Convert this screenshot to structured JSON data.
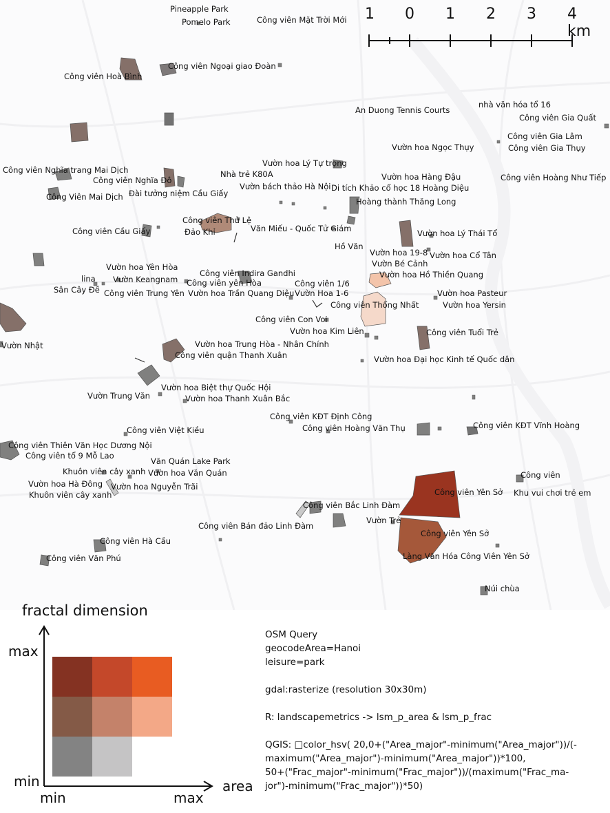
{
  "scale_bar": {
    "ticks": [
      "1",
      "0",
      "1",
      "2",
      "3",
      "4 km"
    ]
  },
  "places": [
    "Pineapple Park",
    "Pomelo Park",
    "Công viên Mặt Trời Mới",
    "Công viên Hoà Bình",
    "Công viên Ngoại giao Đoàn",
    "An Duong Tennis Courts",
    "nhà văn hóa tổ 16",
    "Công viên Gia Quất",
    "Công viên Gia Lâm",
    "Vườn hoa Ngọc Thụy",
    "Công viên Gia Thụy",
    "Vườn hoa Lý Tự trọng",
    "Công viên Nghĩa trang Mai Dịch",
    "Nhà trẻ K80A",
    "Vườn hoa Hàng Đậu",
    "Công viên Hoàng Như Tiếp",
    "Công viên Nghĩa Đô",
    "Vườn bách thảo Hà Nội",
    "Di tích Khảo cổ học 18 Hoàng Diệu",
    "Đài tưởng niệm Cầu Giấy",
    "Công Viên Mai Dịch",
    "Hoàng thành Thăng Long",
    "Công viên Thủ Lệ",
    "Văn Miếu - Quốc Tử Giám",
    "Công viên Cầu Giấy",
    "Đảo Khỉ",
    "Vườn hoa Lý Thái Tổ",
    "Hồ Văn",
    "Vườn hoa 19-8",
    "Vườn hoa Cổ Tân",
    "Vườn Bé Cảnh",
    "Vườn hoa Yên Hòa",
    "Công viên Indira Gandhi",
    "Vườn hoa Hồ Thiền Quang",
    "lina",
    "Vườn Keangnam",
    "Công viên yên Hòa",
    "Sân Cây Đề",
    "Công viên 1/6",
    "Công viên Trung Yên",
    "Vườn hoa Trần Quang Diệu",
    "Vườn Hoa 1-6",
    "Vườn hoa Pasteur",
    "Công viên Thống Nhất",
    "Vườn hoa Yersin",
    "Công viên Con Voi",
    "Vườn hoa Kim Liên",
    "Công viên Tuổi Trẻ",
    "Vườn Nhật",
    "Vườn hoa Trung Hòa - Nhân Chính",
    "Công viên quận Thanh Xuân",
    "Vườn hoa Đại học Kinh tế Quốc dân",
    "Vườn hoa Biệt thự Quốc Hội",
    "Vườn Trung Văn",
    "Vườn hoa Thanh Xuân Bắc",
    "Công viên KĐT Định Công",
    "Công viên Hoàng Văn Thụ",
    "Công viên KĐT Vĩnh Hoàng",
    "Công viên Việt Kiều",
    "Công viên Thiên Văn Học Dương Nội",
    "Công viên tổ 9 Mỗ Lao",
    "Văn Quán Lake Park",
    "Khuôn viên cây xanh",
    "Vườn hoa Văn Quán",
    "Công viên",
    "Vườn hoa Hà Đông",
    "Vườn hoa Nguyễn Trãi",
    "Công viên Yên Sở",
    "Khu vui chơi trẻ em",
    "Khuôn viên cây xanh",
    "Công viên Bắc Linh Đàm",
    "Vườn Trẻ",
    "Công viên Bán đảo Linh Đàm",
    "Công viên Yên Sở",
    "Công viên Hà Cầu",
    "Làng Văn Hóa Công Viên Yên Sở",
    "Công viên Văn Phú",
    "Núi chùa"
  ],
  "legend": {
    "y_axis_label": "fractal dimension",
    "x_axis_label": "area",
    "y_max": "max",
    "y_min": "min",
    "x_min": "min",
    "x_max": "max",
    "grid_colors": [
      [
        "#843222",
        "#c4482a",
        "#e85c22"
      ],
      [
        "#845a47",
        "#c4826a",
        "#f3a887"
      ],
      [
        "#838383",
        "#c5c4c5"
      ]
    ]
  },
  "notes": [
    "OSM Query",
    "geocodeArea=Hanoi",
    "leisure=park",
    "",
    "gdal:rasterize (resolution 30x30m)",
    "",
    "R: landscapemetrics -> lsm_p_area & lsm_p_frac",
    "",
    "QGIS: □color_hsv( 20,0+(\"Area_major\"-minimum(\"Area_major\"))/(-\nmaximum(\"Area_major\")-minimum(\"Area_major\"))*100,\n50+(\"Frac_major\"-minimum(\"Frac_major\"))/(maximum(\"Frac_ma-\njor\")-minimum(\"Frac_major\"))*50)"
  ]
}
